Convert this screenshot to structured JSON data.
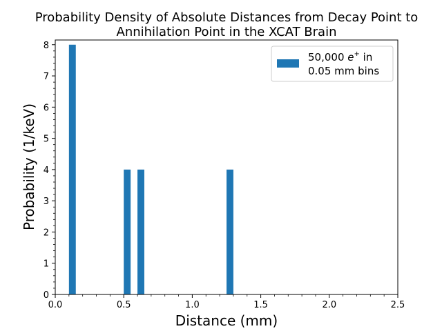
{
  "chart_data": {
    "type": "bar",
    "title_line1": "Probability Density of Absolute Distances from Decay Point to",
    "title_line2": "Annihilation Point in the XCAT Brain",
    "xlabel": "Distance (mm)",
    "ylabel": "Probability (1/keV)",
    "xlim": [
      0.0,
      2.5
    ],
    "ylim": [
      0,
      8.15
    ],
    "x_ticks": [
      "0.0",
      "0.5",
      "1.0",
      "1.5",
      "2.0",
      "2.5"
    ],
    "x_tick_values": [
      0.0,
      0.5,
      1.0,
      1.5,
      2.0,
      2.5
    ],
    "y_ticks": [
      "0",
      "1",
      "2",
      "3",
      "4",
      "5",
      "6",
      "7",
      "8"
    ],
    "y_tick_values": [
      0,
      1,
      2,
      3,
      4,
      5,
      6,
      7,
      8
    ],
    "bin_width": 0.05,
    "bars": [
      {
        "x_start": 0.1,
        "value": 8
      },
      {
        "x_start": 0.5,
        "value": 4
      },
      {
        "x_start": 0.6,
        "value": 4
      },
      {
        "x_start": 1.25,
        "value": 4
      }
    ],
    "legend": {
      "label_line1_prefix": "50,000 ",
      "label_symbol": "e",
      "label_superscript": "+",
      "label_line1_suffix": " in",
      "label_line2": "0.05 mm bins",
      "placement": "top-right"
    },
    "bar_color": "#1f77b4",
    "grid": false
  }
}
